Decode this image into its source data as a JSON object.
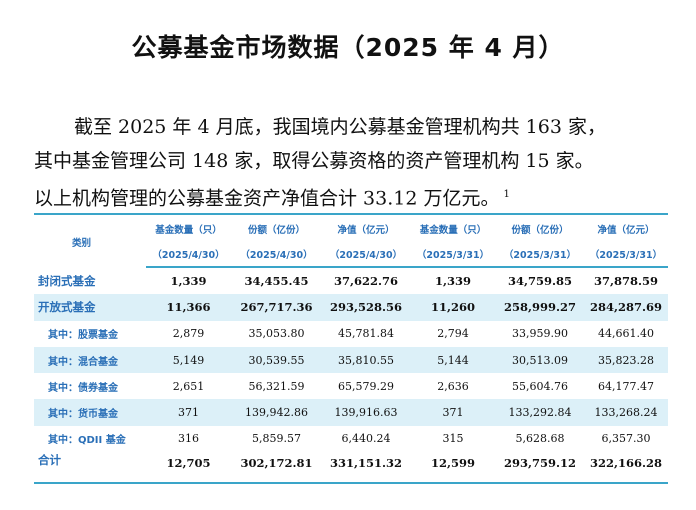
{
  "title": "公募基金市场数据（2025 年 4 月）",
  "intro": {
    "line1": "截至 2025 年 4 月底，我国境内公募基金管理机构共 163 家，",
    "line2": "其中基金管理公司 148 家，取得公募资格的资产管理机构 15 家。",
    "line3": "以上机构管理的公募基金资产净值合计 33.12 万亿元。",
    "footnote_mark": "1"
  },
  "colors": {
    "accent": "#2a6fb7",
    "rule": "#3aa5c9",
    "band": "#dcf0f8"
  },
  "table": {
    "category_header": "类别",
    "headers": [
      {
        "label": "基金数量（只）",
        "date": "（2025/4/30）"
      },
      {
        "label": "份额（亿份）",
        "date": "（2025/4/30）"
      },
      {
        "label": "净值（亿元）",
        "date": "（2025/4/30）"
      },
      {
        "label": "基金数量（只）",
        "date": "（2025/3/31）"
      },
      {
        "label": "份额（亿份）",
        "date": "（2025/3/31）"
      },
      {
        "label": "净值（亿元）",
        "date": "（2025/3/31）"
      }
    ],
    "rows": [
      {
        "label": "封闭式基金",
        "cells": [
          "1,339",
          "34,455.45",
          "37,622.76",
          "1,339",
          "34,759.85",
          "37,878.59"
        ]
      },
      {
        "label": "开放式基金",
        "cells": [
          "11,366",
          "267,717.36",
          "293,528.56",
          "11,260",
          "258,999.27",
          "284,287.69"
        ]
      },
      {
        "label": "其中：股票基金",
        "cells": [
          "2,879",
          "35,053.80",
          "45,781.84",
          "2,794",
          "33,959.90",
          "44,661.40"
        ]
      },
      {
        "label": "其中：混合基金",
        "cells": [
          "5,149",
          "30,539.55",
          "35,810.55",
          "5,144",
          "30,513.09",
          "35,823.28"
        ]
      },
      {
        "label": "其中：债券基金",
        "cells": [
          "2,651",
          "56,321.59",
          "65,579.29",
          "2,636",
          "55,604.76",
          "64,177.47"
        ]
      },
      {
        "label": "其中：货币基金",
        "cells": [
          "371",
          "139,942.86",
          "139,916.63",
          "371",
          "133,292.84",
          "133,268.24"
        ]
      },
      {
        "label": "其中：QDII 基金",
        "cells": [
          "316",
          "5,859.57",
          "6,440.24",
          "315",
          "5,628.68",
          "6,357.30"
        ]
      },
      {
        "label": "合计",
        "cells": [
          "12,705",
          "302,172.81",
          "331,151.32",
          "12,599",
          "293,759.12",
          "322,166.28"
        ]
      }
    ]
  }
}
